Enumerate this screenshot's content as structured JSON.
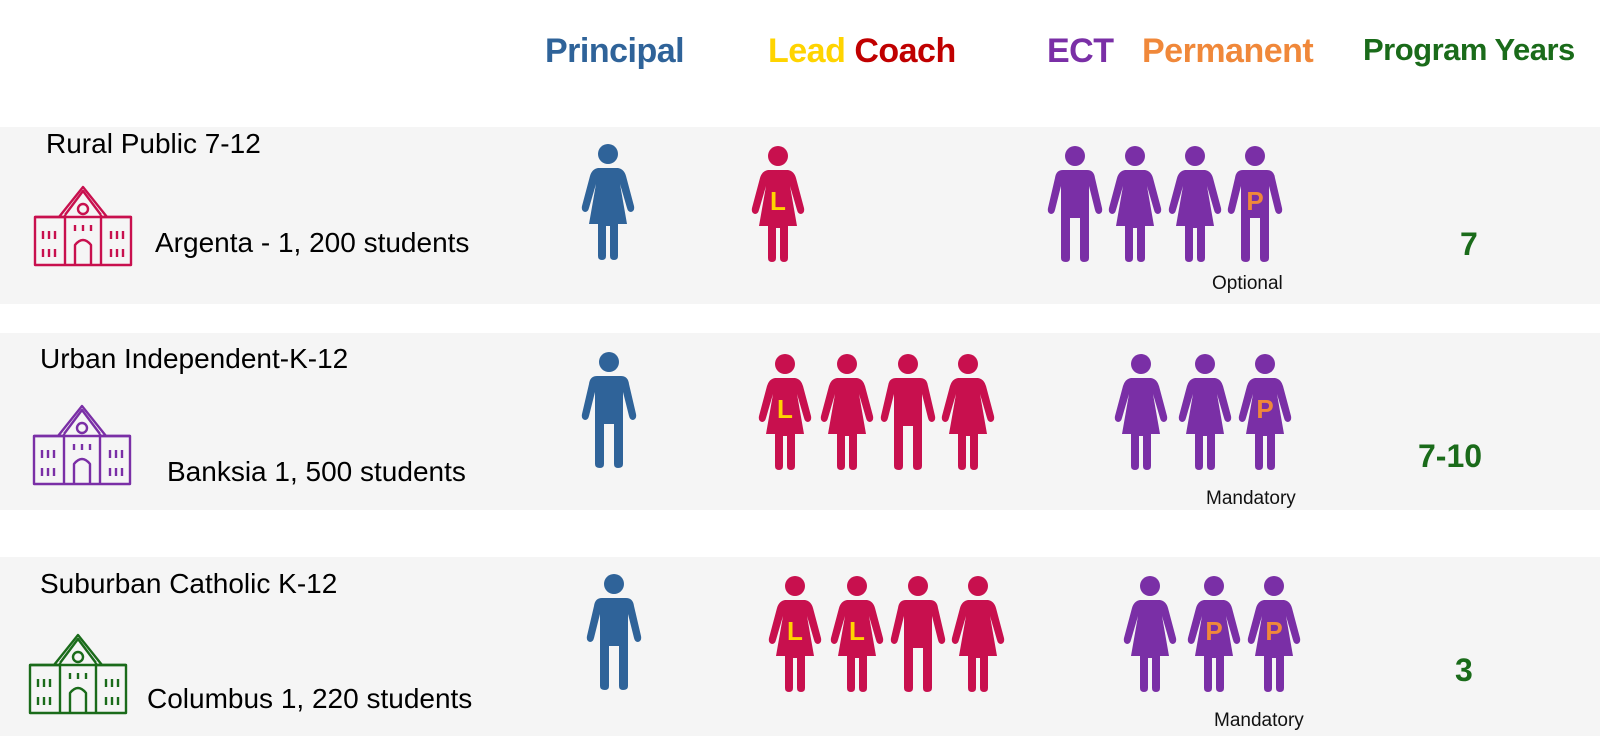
{
  "header": {
    "principal": "Principal",
    "lead": "Lead",
    "coach": "Coach",
    "ect": "ECT",
    "permanent": "Permanent",
    "program_years": "Program Years"
  },
  "colors": {
    "principal": "#2f6399",
    "coach": "#c8104e",
    "lead": "#ffd400",
    "coach_header": "#c00000",
    "ect": "#7a2fa6",
    "permanent": "#f0883a",
    "program_years": "#1a6b1a",
    "school_rural": "#c8104e",
    "school_urban": "#7a2fa6",
    "school_suburban": "#1a6b1a",
    "band": "#f5f5f5"
  },
  "rows": [
    {
      "school_type": "Rural Public 7-12",
      "campus": "Argenta - 1, 200 students",
      "school_icon": "school-building-icon",
      "principal": [
        "female"
      ],
      "coaches": [
        {
          "gender": "female",
          "mark": "L"
        }
      ],
      "ect": [
        {
          "gender": "male",
          "mark": ""
        },
        {
          "gender": "female",
          "mark": ""
        },
        {
          "gender": "female",
          "mark": ""
        },
        {
          "gender": "male",
          "mark": "P"
        }
      ],
      "ect_note": "Optional",
      "program_years": "7"
    },
    {
      "school_type": "Urban Independent-K-12",
      "campus": "Banksia 1, 500 students",
      "school_icon": "school-building-icon",
      "principal": [
        "male"
      ],
      "coaches": [
        {
          "gender": "female",
          "mark": "L"
        },
        {
          "gender": "female",
          "mark": ""
        },
        {
          "gender": "male",
          "mark": ""
        },
        {
          "gender": "female",
          "mark": ""
        }
      ],
      "ect": [
        {
          "gender": "female",
          "mark": ""
        },
        {
          "gender": "female",
          "mark": ""
        },
        {
          "gender": "female",
          "mark": "P"
        }
      ],
      "ect_note": "Mandatory",
      "program_years": "7-10"
    },
    {
      "school_type": "Suburban Catholic K-12",
      "campus": "Columbus 1, 220 students",
      "school_icon": "school-building-icon",
      "principal": [
        "male"
      ],
      "coaches": [
        {
          "gender": "female",
          "mark": "L"
        },
        {
          "gender": "female",
          "mark": "L"
        },
        {
          "gender": "male",
          "mark": ""
        },
        {
          "gender": "female",
          "mark": ""
        }
      ],
      "ect": [
        {
          "gender": "female",
          "mark": ""
        },
        {
          "gender": "female",
          "mark": "P"
        },
        {
          "gender": "female",
          "mark": "P"
        }
      ],
      "ect_note": "Mandatory",
      "program_years": "3"
    }
  ]
}
